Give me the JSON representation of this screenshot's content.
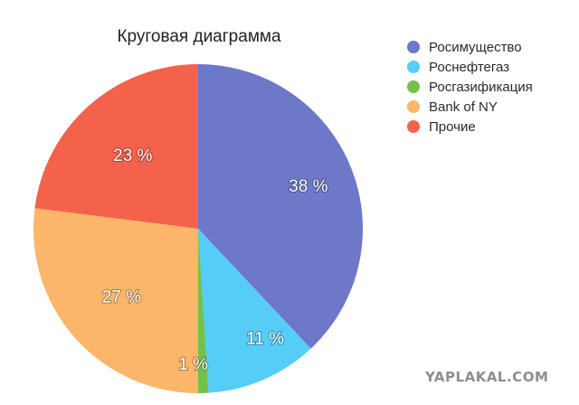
{
  "chart_data": {
    "type": "pie",
    "title": "Круговая диаграмма",
    "categories": [
      "Росимущество",
      "Роснефтегаз",
      "Росгазификация",
      "Bank of NY",
      "Прочие"
    ],
    "values": [
      38,
      11,
      1,
      27,
      23
    ],
    "data_labels": [
      "38 %",
      "11 %",
      "1 %",
      "27 %",
      "23 %"
    ],
    "colors": [
      "#6e78c9",
      "#55cdf7",
      "#74c04b",
      "#fbb669",
      "#f5624c"
    ],
    "start_angle": "12 o'clock",
    "direction": "clockwise",
    "legend_position": "right"
  },
  "watermark": "YAPLAKAL.COM"
}
